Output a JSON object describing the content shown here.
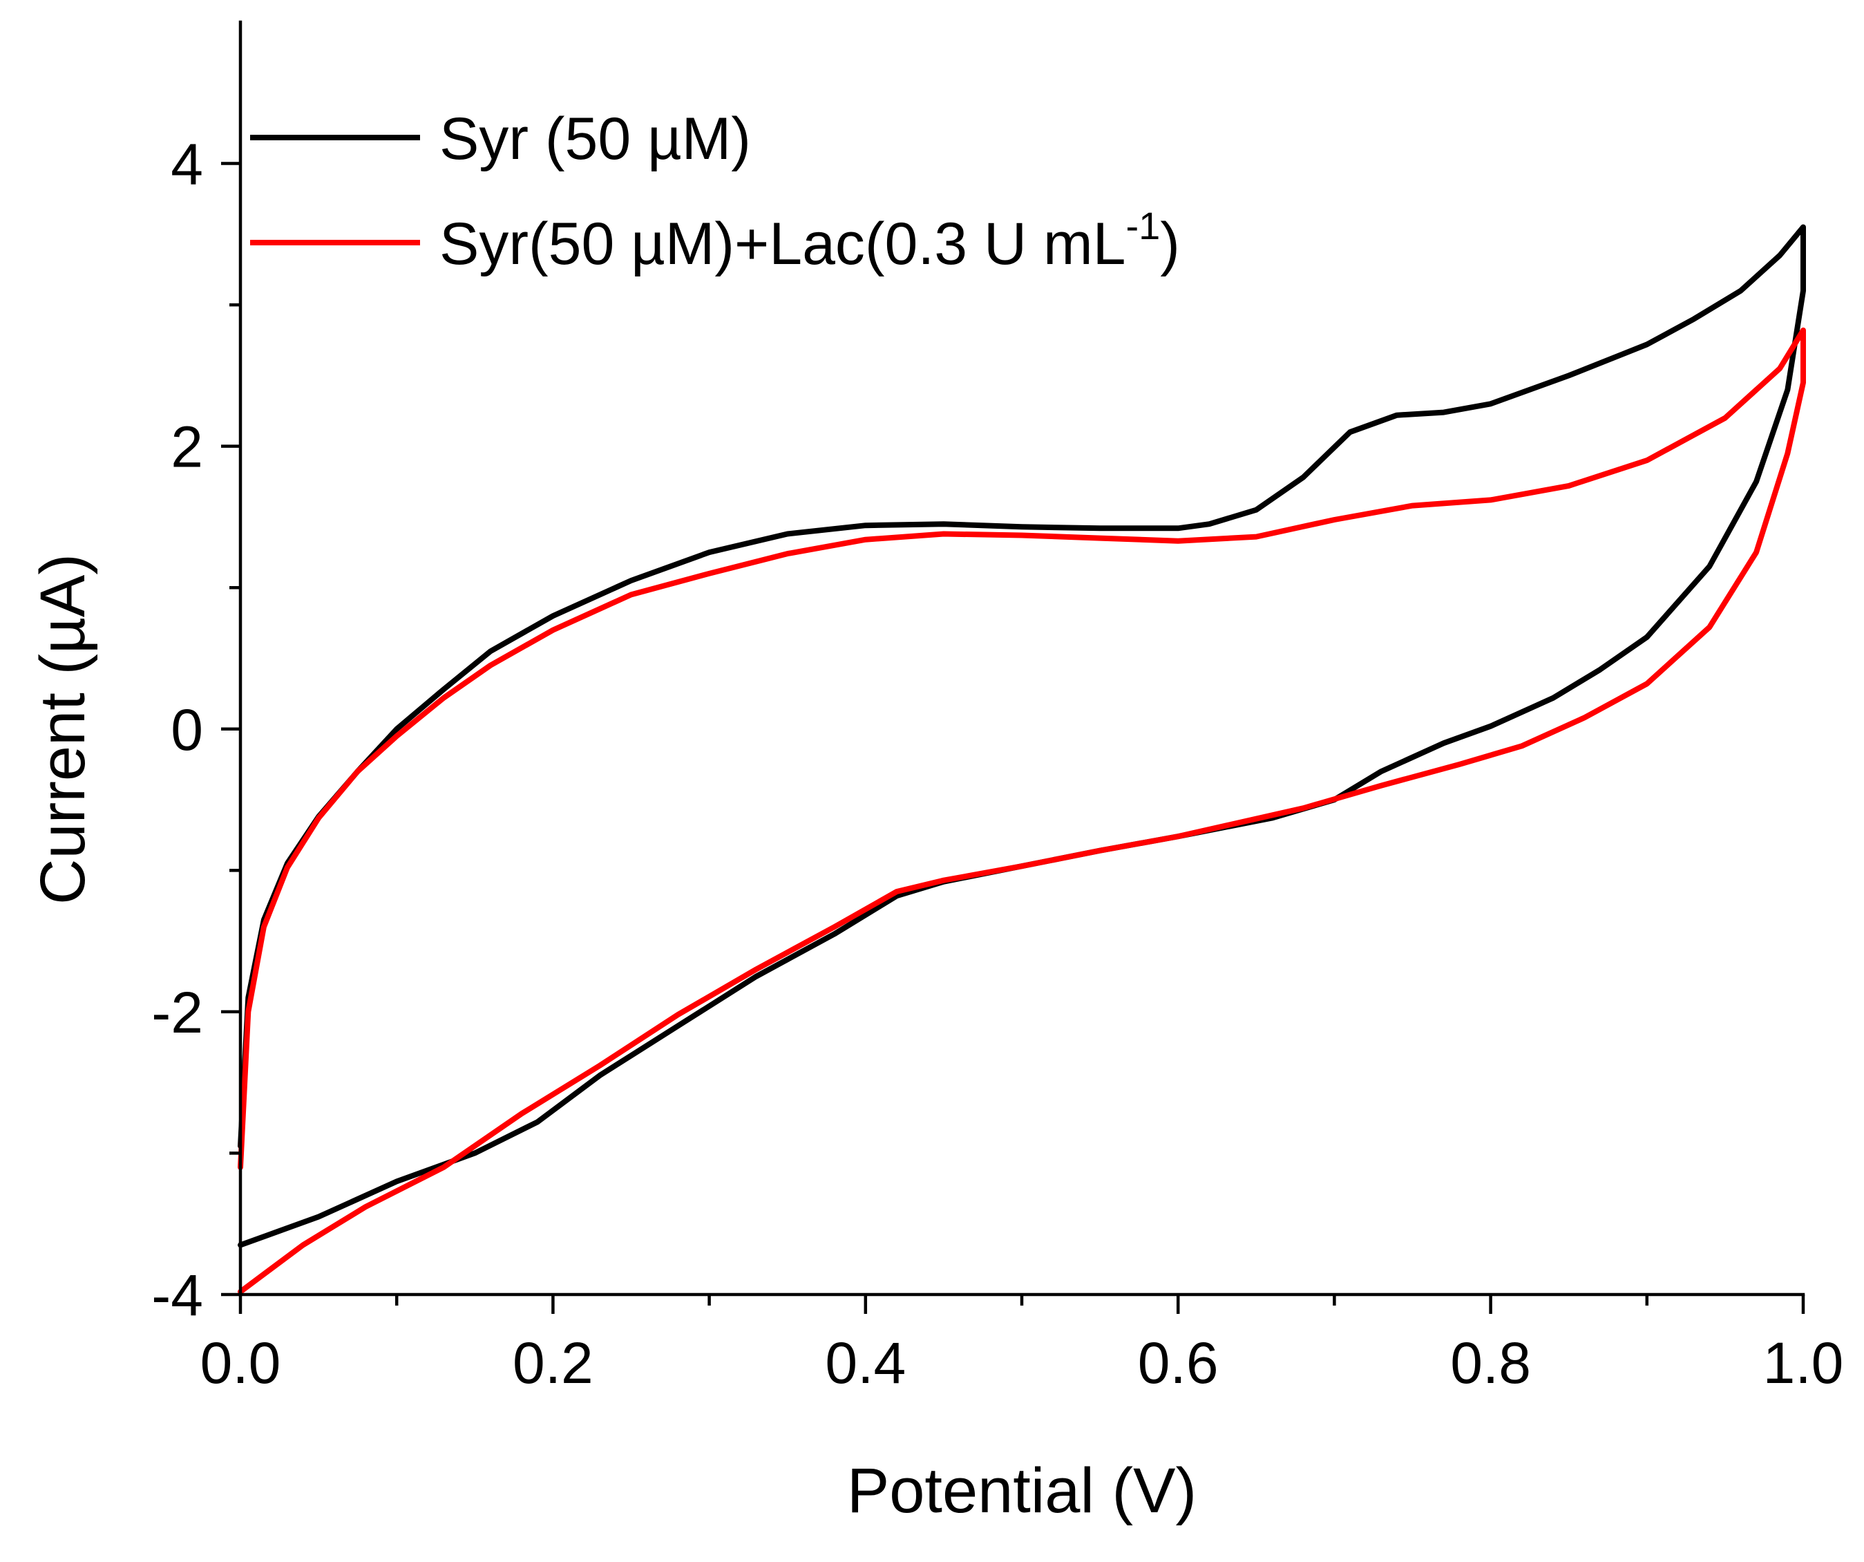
{
  "chart_data": {
    "type": "line",
    "title": "",
    "xlabel": "Potential (V)",
    "ylabel": "Current (µA)",
    "xlim": [
      0.0,
      1.0
    ],
    "ylim": [
      -4,
      5
    ],
    "x_ticks": [
      0.0,
      0.2,
      0.4,
      0.6,
      0.8,
      1.0
    ],
    "x_tick_labels": [
      "0.0",
      "0.2",
      "0.4",
      "0.6",
      "0.8",
      "1.0"
    ],
    "x_minor_ticks": [
      0.1,
      0.3,
      0.5,
      0.7,
      0.9
    ],
    "y_ticks": [
      -4,
      -2,
      0,
      2,
      4
    ],
    "y_tick_labels": [
      "-4",
      "-2",
      "0",
      "2",
      "4"
    ],
    "y_minor_ticks": [
      -3,
      -1,
      1,
      3
    ],
    "grid": false,
    "legend_position": "top-left",
    "series": [
      {
        "name": "Syr (50 µM)",
        "color": "#000000",
        "points": [
          [
            0.0,
            -2.95
          ],
          [
            0.005,
            -1.9
          ],
          [
            0.015,
            -1.35
          ],
          [
            0.03,
            -0.95
          ],
          [
            0.05,
            -0.62
          ],
          [
            0.075,
            -0.3
          ],
          [
            0.1,
            0.0
          ],
          [
            0.13,
            0.28
          ],
          [
            0.16,
            0.55
          ],
          [
            0.2,
            0.8
          ],
          [
            0.25,
            1.05
          ],
          [
            0.3,
            1.25
          ],
          [
            0.35,
            1.38
          ],
          [
            0.4,
            1.44
          ],
          [
            0.45,
            1.45
          ],
          [
            0.5,
            1.43
          ],
          [
            0.55,
            1.42
          ],
          [
            0.6,
            1.42
          ],
          [
            0.62,
            1.45
          ],
          [
            0.65,
            1.55
          ],
          [
            0.68,
            1.78
          ],
          [
            0.71,
            2.1
          ],
          [
            0.74,
            2.22
          ],
          [
            0.77,
            2.24
          ],
          [
            0.8,
            2.3
          ],
          [
            0.85,
            2.5
          ],
          [
            0.9,
            2.72
          ],
          [
            0.93,
            2.9
          ],
          [
            0.96,
            3.1
          ],
          [
            0.985,
            3.35
          ],
          [
            1.0,
            3.55
          ],
          [
            1.0,
            3.1
          ],
          [
            0.99,
            2.4
          ],
          [
            0.97,
            1.75
          ],
          [
            0.94,
            1.15
          ],
          [
            0.9,
            0.65
          ],
          [
            0.87,
            0.42
          ],
          [
            0.84,
            0.22
          ],
          [
            0.8,
            0.02
          ],
          [
            0.77,
            -0.1
          ],
          [
            0.73,
            -0.3
          ],
          [
            0.7,
            -0.5
          ],
          [
            0.66,
            -0.63
          ],
          [
            0.6,
            -0.76
          ],
          [
            0.55,
            -0.86
          ],
          [
            0.5,
            -0.97
          ],
          [
            0.45,
            -1.08
          ],
          [
            0.42,
            -1.18
          ],
          [
            0.38,
            -1.45
          ],
          [
            0.33,
            -1.75
          ],
          [
            0.28,
            -2.1
          ],
          [
            0.23,
            -2.45
          ],
          [
            0.19,
            -2.78
          ],
          [
            0.15,
            -3.0
          ],
          [
            0.1,
            -3.2
          ],
          [
            0.05,
            -3.45
          ],
          [
            0.0,
            -3.65
          ]
        ]
      },
      {
        "name": "Syr(50 µM)+Lac(0.3 U mL",
        "name_superscript": "-1",
        "name_suffix": ")",
        "color": "#ff0000",
        "points": [
          [
            0.0,
            -3.1
          ],
          [
            0.005,
            -2.0
          ],
          [
            0.015,
            -1.4
          ],
          [
            0.03,
            -0.98
          ],
          [
            0.05,
            -0.63
          ],
          [
            0.075,
            -0.3
          ],
          [
            0.1,
            -0.05
          ],
          [
            0.13,
            0.22
          ],
          [
            0.16,
            0.45
          ],
          [
            0.2,
            0.7
          ],
          [
            0.25,
            0.95
          ],
          [
            0.3,
            1.1
          ],
          [
            0.35,
            1.24
          ],
          [
            0.4,
            1.34
          ],
          [
            0.45,
            1.38
          ],
          [
            0.5,
            1.37
          ],
          [
            0.55,
            1.35
          ],
          [
            0.6,
            1.33
          ],
          [
            0.65,
            1.36
          ],
          [
            0.7,
            1.48
          ],
          [
            0.75,
            1.58
          ],
          [
            0.8,
            1.62
          ],
          [
            0.85,
            1.72
          ],
          [
            0.9,
            1.9
          ],
          [
            0.95,
            2.2
          ],
          [
            0.985,
            2.55
          ],
          [
            1.0,
            2.82
          ],
          [
            1.0,
            2.45
          ],
          [
            0.99,
            1.95
          ],
          [
            0.97,
            1.25
          ],
          [
            0.94,
            0.72
          ],
          [
            0.9,
            0.32
          ],
          [
            0.86,
            0.08
          ],
          [
            0.82,
            -0.12
          ],
          [
            0.78,
            -0.25
          ],
          [
            0.73,
            -0.4
          ],
          [
            0.68,
            -0.56
          ],
          [
            0.6,
            -0.76
          ],
          [
            0.55,
            -0.86
          ],
          [
            0.5,
            -0.97
          ],
          [
            0.45,
            -1.07
          ],
          [
            0.42,
            -1.15
          ],
          [
            0.38,
            -1.4
          ],
          [
            0.33,
            -1.7
          ],
          [
            0.28,
            -2.02
          ],
          [
            0.23,
            -2.38
          ],
          [
            0.18,
            -2.72
          ],
          [
            0.13,
            -3.1
          ],
          [
            0.08,
            -3.38
          ],
          [
            0.04,
            -3.65
          ],
          [
            0.0,
            -3.98
          ]
        ]
      }
    ]
  }
}
